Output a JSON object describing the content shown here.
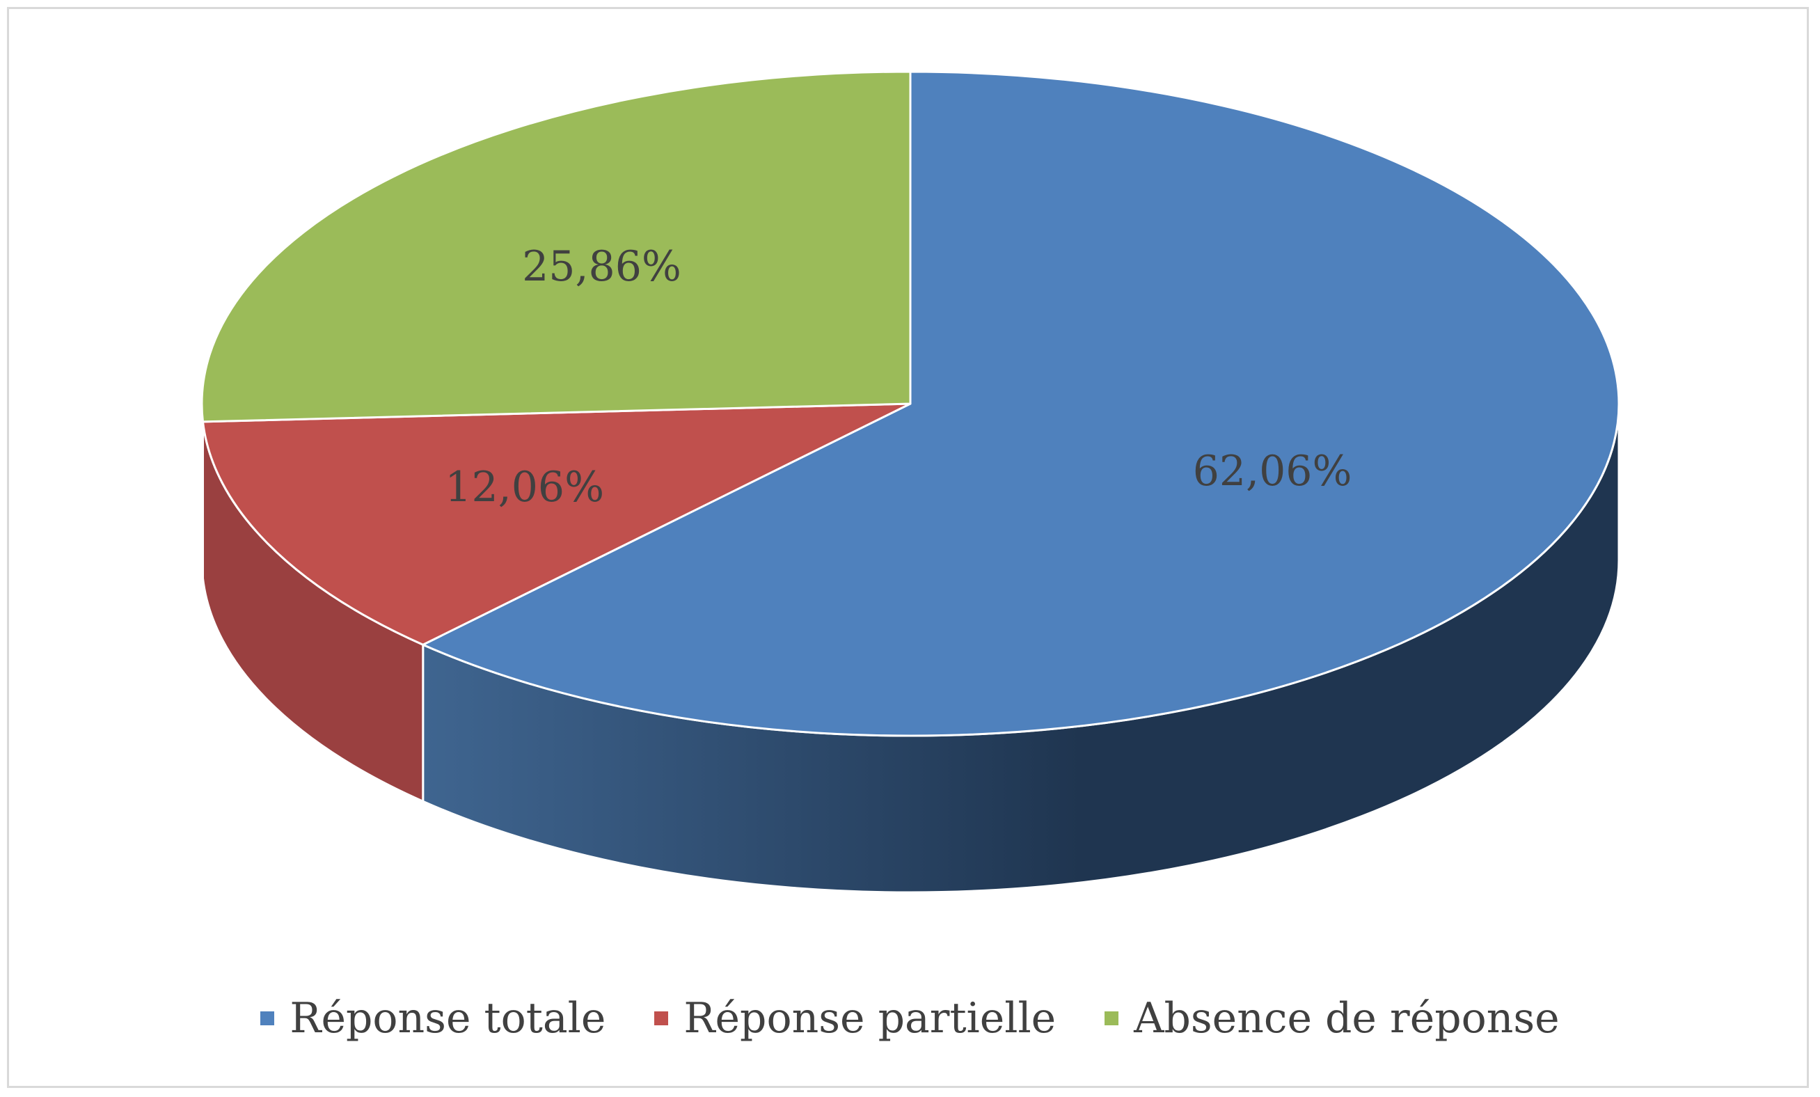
{
  "chart_data": {
    "type": "pie",
    "title": "",
    "categories": [
      "Réponse totale",
      "Réponse partielle",
      "Absence de réponse"
    ],
    "values": [
      62.06,
      12.06,
      25.86
    ],
    "data_labels": [
      "62,06%",
      "12,06%",
      "25,86%"
    ],
    "colors": [
      "#4F81BD",
      "#C0504D",
      "#9BBB59"
    ],
    "side_colors_dark": [
      "#1F3550",
      "#9A4040",
      "#6E8C3A"
    ],
    "side_colors_light": [
      "#3F6590",
      "#9A4040",
      "#7E9A48"
    ],
    "style": "3d",
    "legend": {
      "position": "bottom",
      "items": [
        {
          "label": "Réponse totale",
          "color": "#4F81BD"
        },
        {
          "label": "Réponse partielle",
          "color": "#C0504D"
        },
        {
          "label": "Absence de réponse",
          "color": "#9BBB59"
        }
      ]
    }
  }
}
